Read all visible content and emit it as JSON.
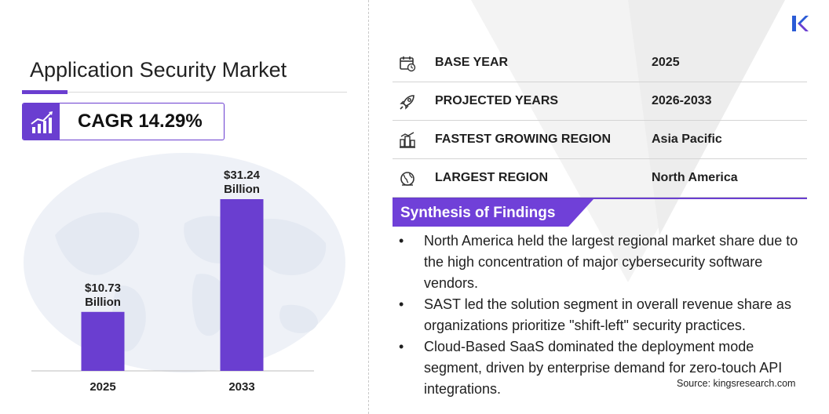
{
  "title": "Application Security Market",
  "cagr": "CAGR 14.29%",
  "info_rows": [
    {
      "icon": "calendar-icon",
      "label": "BASE YEAR",
      "value": "2025"
    },
    {
      "icon": "rocket-icon",
      "label": "PROJECTED YEARS",
      "value": "2026-2033"
    },
    {
      "icon": "city-growth-icon",
      "label": "FASTEST GROWING REGION",
      "value": "Asia Pacific"
    },
    {
      "icon": "globe-icon",
      "label": "LARGEST REGION",
      "value": "North America"
    }
  ],
  "synthesis_title": "Synthesis of Findings",
  "bullet_glyph": "•",
  "findings": [
    "North America held the largest regional market share due to the high concentration of major cybersecurity software vendors.",
    "SAST led the solution segment in overall revenue share as organizations prioritize \"shift-left\" security practices.",
    "Cloud-Based SaaS dominated the deployment mode segment, driven by enterprise demand for zero-touch API integrations."
  ],
  "source": "Source:  kingsresearch.com",
  "colors": {
    "accent": "#6a3ed0",
    "header_fill": "#7040d8",
    "bar": "#6a3ed0",
    "world_map": "#eef1f7"
  },
  "chart_data": {
    "type": "bar",
    "categories": [
      "2025",
      "2033"
    ],
    "values": [
      10.73,
      31.24
    ],
    "data_labels": [
      [
        "$10.73",
        "Billion"
      ],
      [
        "$31.24",
        "Billion"
      ]
    ],
    "unit": "Billion",
    "currency": "$",
    "grid": false,
    "ylim": [
      0,
      31.24
    ]
  }
}
